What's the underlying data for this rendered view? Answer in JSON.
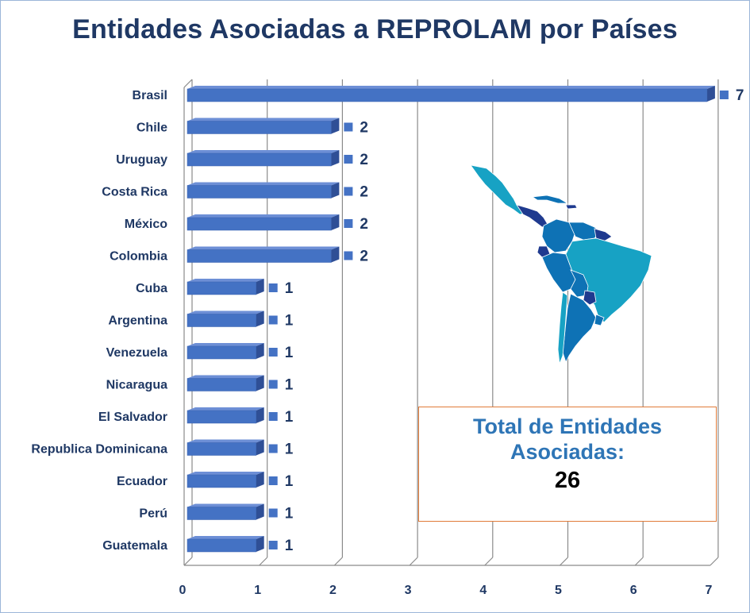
{
  "chart_data": {
    "type": "bar",
    "orientation": "horizontal",
    "title": "Entidades Asociadas a REPROLAM por Países",
    "categories": [
      "Brasil",
      "Chile",
      "Uruguay",
      "Costa Rica",
      "México",
      "Colombia",
      "Cuba",
      "Argentina",
      "Venezuela",
      "Nicaragua",
      "El Salvador",
      "Republica Dominicana",
      "Ecuador",
      "Perú",
      "Guatemala"
    ],
    "values": [
      7,
      2,
      2,
      2,
      2,
      2,
      1,
      1,
      1,
      1,
      1,
      1,
      1,
      1,
      1
    ],
    "xlim": [
      0,
      7
    ],
    "xticks": [
      "0",
      "1",
      "2",
      "3",
      "4",
      "5",
      "6",
      "7"
    ],
    "grid": true,
    "style": "3d",
    "bar_color": "#4472c4",
    "label_color": "#1f3864"
  },
  "summary": {
    "label": "Total de Entidades Asociadas:",
    "value": "26"
  },
  "map_colors": {
    "light": "#17a2c4",
    "mid": "#0e72b5",
    "dark": "#1f3a8f"
  }
}
